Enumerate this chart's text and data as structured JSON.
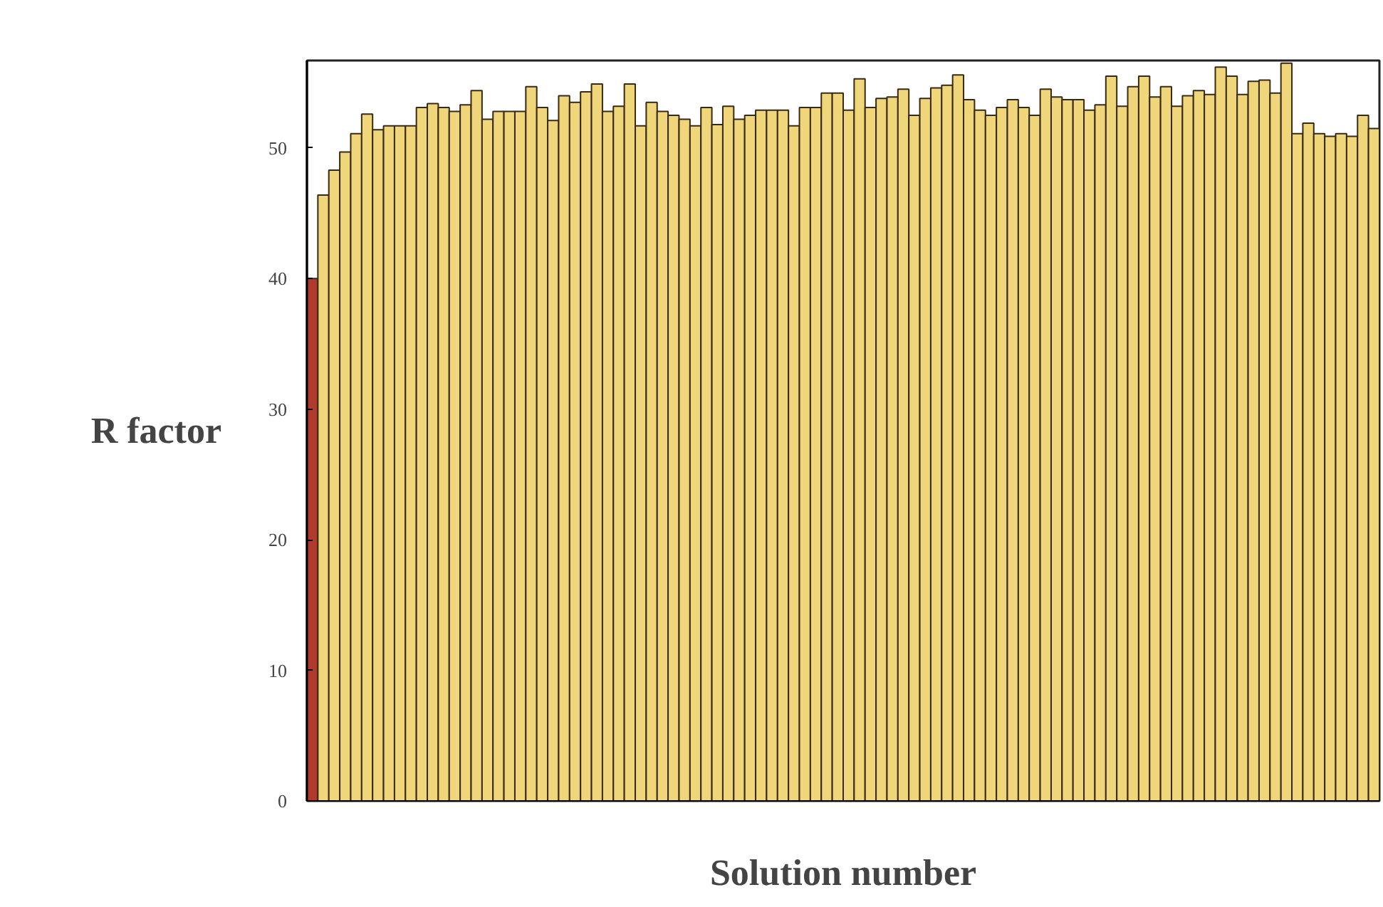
{
  "chart_data": {
    "type": "bar",
    "xlabel": "Solution number",
    "ylabel": "R factor",
    "categories": [
      null,
      null,
      null,
      null,
      null,
      null,
      null,
      null,
      null,
      null,
      null,
      null,
      null,
      null,
      null,
      null,
      null,
      null,
      null,
      null,
      null,
      null,
      null,
      null,
      null,
      null,
      null,
      null,
      null,
      null,
      null,
      null,
      null,
      null,
      null,
      null,
      null,
      null,
      null,
      null,
      null,
      null,
      null,
      null,
      null,
      null,
      null,
      null,
      null,
      null,
      null,
      null,
      null,
      null,
      null,
      null,
      null,
      null,
      null,
      null,
      null,
      null,
      null,
      null,
      null,
      null,
      null,
      null,
      null,
      null,
      null,
      null,
      null,
      null,
      null,
      null,
      null,
      null,
      null,
      null,
      null,
      null,
      null,
      null,
      null,
      null,
      null,
      null,
      null,
      null,
      null,
      null,
      null,
      null,
      null,
      null,
      null,
      null
    ],
    "values": [
      40.0,
      46.4,
      48.3,
      49.7,
      51.1,
      52.6,
      51.4,
      51.7,
      51.7,
      51.7,
      53.1,
      53.4,
      53.1,
      52.8,
      53.3,
      54.4,
      52.2,
      52.8,
      52.8,
      52.8,
      54.7,
      53.1,
      52.1,
      54.0,
      53.5,
      54.3,
      54.9,
      52.8,
      53.2,
      54.9,
      51.7,
      53.5,
      52.8,
      52.5,
      52.2,
      51.7,
      53.1,
      51.8,
      53.2,
      52.2,
      52.5,
      52.9,
      52.9,
      52.9,
      51.7,
      53.1,
      53.1,
      54.2,
      54.2,
      52.9,
      55.3,
      53.1,
      53.8,
      53.9,
      54.5,
      52.5,
      53.8,
      54.6,
      54.8,
      55.6,
      53.7,
      52.9,
      52.5,
      53.1,
      53.7,
      53.1,
      52.5,
      54.5,
      53.9,
      53.7,
      53.7,
      52.9,
      53.3,
      55.5,
      53.2,
      54.7,
      55.5,
      53.9,
      54.7,
      53.2,
      54.0,
      54.4,
      54.1,
      56.2,
      55.5,
      54.1,
      55.1,
      55.2,
      54.2,
      56.5,
      51.1,
      51.9,
      51.1,
      50.9,
      51.1,
      50.9,
      52.5,
      51.5
    ],
    "colors": [
      "#b03a2e",
      "#f0d67a",
      "#f0d67a",
      "#f0d67a",
      "#f0d67a",
      "#f0d67a",
      "#f0d67a",
      "#f0d67a",
      "#f0d67a",
      "#f0d67a",
      "#f0d67a",
      "#f0d67a",
      "#f0d67a",
      "#f0d67a",
      "#f0d67a",
      "#f0d67a",
      "#f0d67a",
      "#f0d67a",
      "#f0d67a",
      "#f0d67a",
      "#f0d67a",
      "#f0d67a",
      "#f0d67a",
      "#f0d67a",
      "#f0d67a",
      "#f0d67a",
      "#f0d67a",
      "#f0d67a",
      "#f0d67a",
      "#f0d67a",
      "#f0d67a",
      "#f0d67a",
      "#f0d67a",
      "#f0d67a",
      "#f0d67a",
      "#f0d67a",
      "#f0d67a",
      "#f0d67a",
      "#f0d67a",
      "#f0d67a",
      "#f0d67a",
      "#f0d67a",
      "#f0d67a",
      "#f0d67a",
      "#f0d67a",
      "#f0d67a",
      "#f0d67a",
      "#f0d67a",
      "#f0d67a",
      "#f0d67a",
      "#f0d67a",
      "#f0d67a",
      "#f0d67a",
      "#f0d67a",
      "#f0d67a",
      "#f0d67a",
      "#f0d67a",
      "#f0d67a",
      "#f0d67a",
      "#f0d67a",
      "#f0d67a",
      "#f0d67a",
      "#f0d67a",
      "#f0d67a",
      "#f0d67a",
      "#f0d67a",
      "#f0d67a",
      "#f0d67a",
      "#f0d67a",
      "#f0d67a",
      "#f0d67a",
      "#f0d67a",
      "#f0d67a",
      "#f0d67a",
      "#f0d67a",
      "#f0d67a",
      "#f0d67a",
      "#f0d67a",
      "#f0d67a",
      "#f0d67a",
      "#f0d67a",
      "#f0d67a",
      "#f0d67a",
      "#f0d67a",
      "#f0d67a",
      "#f0d67a",
      "#f0d67a",
      "#f0d67a",
      "#f0d67a",
      "#f0d67a",
      "#f0d67a",
      "#f0d67a",
      "#f0d67a",
      "#f0d67a",
      "#f0d67a",
      "#f0d67a",
      "#f0d67a",
      "#f0d67a"
    ],
    "ylim": [
      0,
      56.7
    ],
    "yticks": [
      0,
      10,
      20,
      30,
      40,
      50
    ],
    "grid": false,
    "tick_labels": "y"
  }
}
